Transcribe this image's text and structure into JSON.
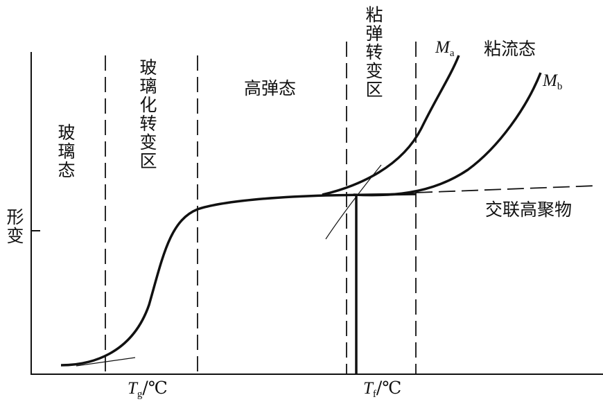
{
  "regions": {
    "glassy": "玻璃态",
    "glass_transition": "玻璃化转变区",
    "rubbery": "高弹态",
    "viscoelastic_transition": "粘弹转变区",
    "viscous_flow": "粘流态"
  },
  "crosslinked": "交联高聚物",
  "y_axis_label": "形变",
  "curves": {
    "ma": {
      "main": "M",
      "sub": "a"
    },
    "mb": {
      "main": "M",
      "sub": "b"
    }
  },
  "x_marks": {
    "tg": {
      "main": "T",
      "sub": "g",
      "suffix": "/℃"
    },
    "tf": {
      "main": "T",
      "sub": "f",
      "suffix": "/℃"
    }
  }
}
